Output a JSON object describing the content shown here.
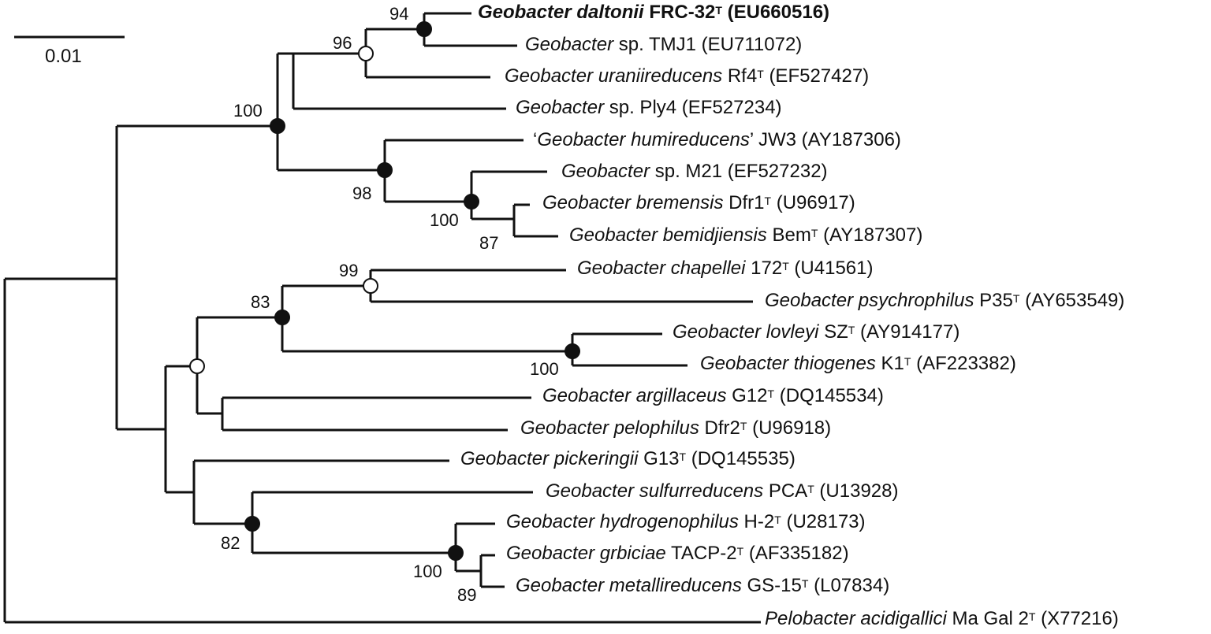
{
  "scale": {
    "label": "0.01"
  },
  "taxa": [
    {
      "genus": "Geobacter daltonii",
      "strain": "FRC-32",
      "type_strain": true,
      "accession": "(EU660516)",
      "bold": true
    },
    {
      "genus": "Geobacter",
      "strain": "sp. TMJ1",
      "type_strain": false,
      "accession": "(EU711072)"
    },
    {
      "genus": "Geobacter uraniireducens",
      "strain": "Rf4",
      "type_strain": true,
      "accession": "(EF527427)"
    },
    {
      "genus": "Geobacter",
      "strain": "sp. Ply4",
      "type_strain": false,
      "accession": "(EF527234)"
    },
    {
      "genus": "Geobacter humireducens",
      "strain": "JW3",
      "type_strain": false,
      "accession": "(AY187306)",
      "quoted": true
    },
    {
      "genus": "Geobacter",
      "strain": "sp. M21",
      "type_strain": false,
      "accession": "(EF527232)"
    },
    {
      "genus": "Geobacter bremensis",
      "strain": "Dfr1",
      "type_strain": true,
      "accession": "(U96917)"
    },
    {
      "genus": "Geobacter bemidjiensis",
      "strain": "Bem",
      "type_strain": true,
      "accession": "(AY187307)"
    },
    {
      "genus": "Geobacter chapellei",
      "strain": "172",
      "type_strain": true,
      "accession": "(U41561)"
    },
    {
      "genus": "Geobacter psychrophilus",
      "strain": "P35",
      "type_strain": true,
      "accession": "(AY653549)"
    },
    {
      "genus": "Geobacter lovleyi",
      "strain": "SZ",
      "type_strain": true,
      "accession": "(AY914177)"
    },
    {
      "genus": "Geobacter thiogenes",
      "strain": "K1",
      "type_strain": true,
      "accession": "(AF223382)"
    },
    {
      "genus": "Geobacter argillaceus",
      "strain": "G12",
      "type_strain": true,
      "accession": "(DQ145534)"
    },
    {
      "genus": "Geobacter pelophilus",
      "strain": "Dfr2",
      "type_strain": true,
      "accession": "(U96918)"
    },
    {
      "genus": "Geobacter pickeringii",
      "strain": "G13",
      "type_strain": true,
      "accession": "(DQ145535)"
    },
    {
      "genus": "Geobacter sulfurreducens",
      "strain": "PCA",
      "type_strain": true,
      "accession": "(U13928)"
    },
    {
      "genus": "Geobacter hydrogenophilus",
      "strain": "H-2",
      "type_strain": true,
      "accession": "(U28173)"
    },
    {
      "genus": "Geobacter grbiciae",
      "strain": "TACP-2",
      "type_strain": true,
      "accession": "(AF335182)"
    },
    {
      "genus": "Geobacter metallireducens",
      "strain": "GS-15",
      "type_strain": true,
      "accession": "(L07834)"
    },
    {
      "genus": "Pelobacter acidigallici",
      "strain": "Ma Gal 2",
      "type_strain": true,
      "accession": "(X77216)"
    }
  ],
  "type_mark": "T",
  "bootstrap": [
    "94",
    "96",
    "100",
    "98",
    "100",
    "87",
    "99",
    "83",
    "100",
    "82",
    "100",
    "89"
  ],
  "node_markers": {
    "filled": "black circle",
    "open": "white circle"
  }
}
